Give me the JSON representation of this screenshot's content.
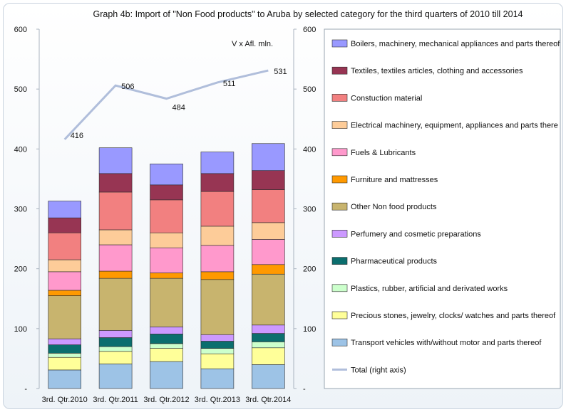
{
  "chart_data": {
    "type": "bar",
    "stacked": true,
    "title": "Graph 4b: Import of \"Non Food products\" to Aruba by selected category for the third quarters of 2010 till 2014",
    "unit_note": "V x Afl. mln.",
    "categories": [
      "3rd. Qtr.2010",
      "3rd. Qtr.2011",
      "3rd. Qtr.2012",
      "3rd. Qtr.2013",
      "3rd. Qtr.2014"
    ],
    "ylim": [
      0,
      600
    ],
    "y_ticks": [
      "-",
      "100",
      "200",
      "300",
      "400",
      "500",
      "600"
    ],
    "y_right_ticks": [
      "-",
      "100",
      "200",
      "300",
      "400",
      "500",
      "600"
    ],
    "series": [
      {
        "name": "Transport vehicles with/without motor and parts thereof",
        "color": "#9dc3e6",
        "values": [
          31,
          41,
          45,
          33,
          40
        ]
      },
      {
        "name": "Precious stones, jewelry, clocks/ watches and parts thereof",
        "color": "#ffff99",
        "values": [
          21,
          21,
          22,
          25,
          28
        ]
      },
      {
        "name": "Plastics, rubber, artificial and derivated works",
        "color": "#ccffcc",
        "values": [
          7,
          8,
          8,
          9,
          10
        ]
      },
      {
        "name": "Pharmaceutical products",
        "color": "#0b6e6e",
        "values": [
          14,
          15,
          16,
          12,
          14
        ]
      },
      {
        "name": "Perfumery and cosmetic preparations",
        "color": "#cc99ff",
        "values": [
          10,
          12,
          12,
          11,
          14
        ]
      },
      {
        "name": "Other Non food products",
        "color": "#c8b46e",
        "values": [
          72,
          87,
          81,
          92,
          85
        ]
      },
      {
        "name": "Furniture and mattresses",
        "color": "#ff9900",
        "values": [
          9,
          12,
          9,
          13,
          16
        ]
      },
      {
        "name": "Fuels & Lubricants",
        "color": "#ff99cc",
        "values": [
          31,
          44,
          42,
          44,
          42
        ]
      },
      {
        "name": "Electrical machinery, equipment, appliances  and parts there",
        "color": "#fdcc99",
        "values": [
          20,
          25,
          25,
          32,
          28
        ]
      },
      {
        "name": "Constuction material",
        "color": "#f28080",
        "values": [
          45,
          63,
          55,
          58,
          55
        ]
      },
      {
        "name": "Textiles, textiles articles, clothing and accessories",
        "color": "#973553",
        "values": [
          25,
          31,
          25,
          30,
          32
        ]
      },
      {
        "name": "Boilers, machinery, mechanical appliances and parts thereof",
        "color": "#9999ff",
        "values": [
          28,
          43,
          35,
          36,
          45
        ]
      }
    ],
    "line_series": {
      "name": "Total (right axis)",
      "color": "#b0bedb",
      "values": [
        416,
        506,
        484,
        511,
        531
      ],
      "labels": [
        "416",
        "506",
        "484",
        "511",
        "531"
      ]
    },
    "legend_position": "right",
    "grid": false
  }
}
